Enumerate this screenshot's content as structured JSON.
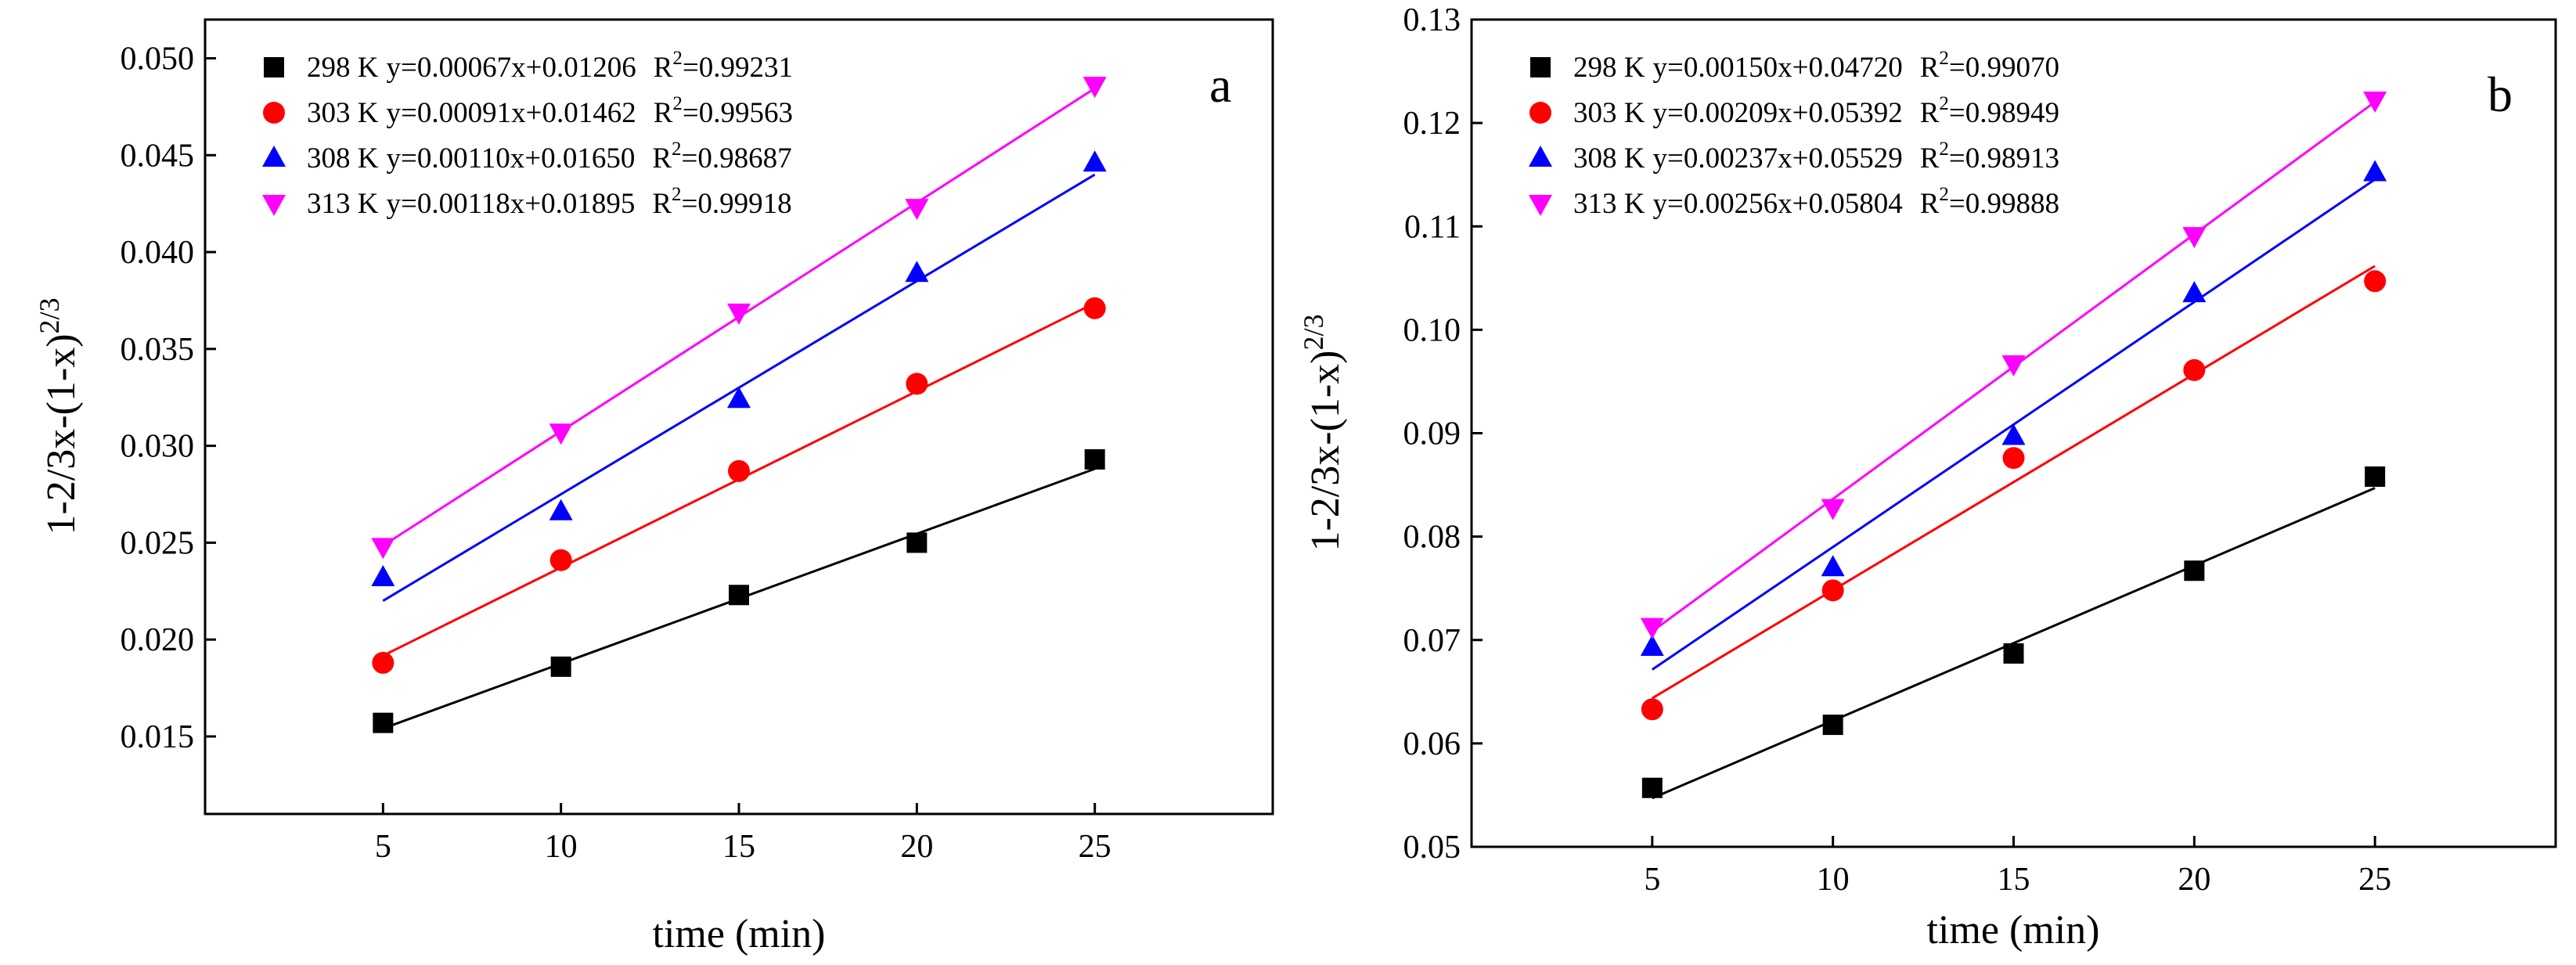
{
  "chart_data": [
    {
      "type": "scatter",
      "panel_label": "a",
      "xlabel": "time (min)",
      "ylabel_base": "1-2/3x-(1-x)",
      "ylabel_exp": "2/3",
      "x": [
        5,
        10,
        15,
        20,
        25
      ],
      "xticks": [
        5,
        10,
        15,
        20,
        25
      ],
      "xtick_labels": [
        "5",
        "10",
        "15",
        "20",
        "25"
      ],
      "xlim": [
        0,
        30
      ],
      "ylim": [
        0.011,
        0.052
      ],
      "yticks": [
        0.015,
        0.02,
        0.025,
        0.03,
        0.035,
        0.04,
        0.045,
        0.05
      ],
      "ytick_labels": [
        "0.015",
        "0.020",
        "0.025",
        "0.030",
        "0.035",
        "0.040",
        "0.045",
        "0.050"
      ],
      "legend_position": "top-left",
      "series": [
        {
          "name": "298 K",
          "equation": "y=0.00067x+0.01206",
          "r2_prefix": "R",
          "r2_exp": "2",
          "r2_value": "=0.99231",
          "slope": 0.00067,
          "intercept": 0.01206,
          "marker": "square",
          "color": "#000000",
          "values": [
            0.0157,
            0.0186,
            0.0223,
            0.025,
            0.0293
          ]
        },
        {
          "name": "303 K",
          "equation": "y=0.00091x+0.01462",
          "r2_prefix": "R",
          "r2_exp": "2",
          "r2_value": "=0.99563",
          "slope": 0.00091,
          "intercept": 0.01462,
          "marker": "circle",
          "color": "#ff0000",
          "values": [
            0.0188,
            0.0241,
            0.0287,
            0.0332,
            0.0371
          ]
        },
        {
          "name": "308 K",
          "equation": "y=0.00110x+0.01650",
          "r2_prefix": "R",
          "r2_exp": "2",
          "r2_value": "=0.98687",
          "slope": 0.0011,
          "intercept": 0.0165,
          "marker": "triangle-up",
          "color": "#0000ff",
          "values": [
            0.0232,
            0.0266,
            0.0324,
            0.0389,
            0.0446
          ]
        },
        {
          "name": "313 K",
          "equation": "y=0.00118x+0.01895",
          "r2_prefix": "R",
          "r2_exp": "2",
          "r2_value": "=0.99918",
          "slope": 0.00118,
          "intercept": 0.01895,
          "marker": "triangle-down",
          "color": "#ff00ff",
          "values": [
            0.0248,
            0.0307,
            0.0369,
            0.0423,
            0.0486
          ]
        }
      ]
    },
    {
      "type": "scatter",
      "panel_label": "b",
      "xlabel": "time (min)",
      "ylabel_base": "1-2/3x-(1-x)",
      "ylabel_exp": "2/3",
      "x": [
        5,
        10,
        15,
        20,
        25
      ],
      "xticks": [
        5,
        10,
        15,
        20,
        25
      ],
      "xtick_labels": [
        "5",
        "10",
        "15",
        "20",
        "25"
      ],
      "xlim": [
        0,
        30
      ],
      "ylim": [
        0.05,
        0.13
      ],
      "yticks": [
        0.05,
        0.06,
        0.07,
        0.08,
        0.09,
        0.1,
        0.11,
        0.12,
        0.13
      ],
      "ytick_labels": [
        "0.05",
        "0.06",
        "0.07",
        "0.08",
        "0.09",
        "0.10",
        "0.11",
        "0.12",
        "0.13"
      ],
      "legend_position": "top-left",
      "series": [
        {
          "name": "298 K",
          "equation": "y=0.00150x+0.04720",
          "r2_prefix": "R",
          "r2_exp": "2",
          "r2_value": "=0.99070",
          "slope": 0.0015,
          "intercept": 0.0472,
          "marker": "square",
          "color": "#000000",
          "values": [
            0.0557,
            0.0618,
            0.0687,
            0.0767,
            0.0858
          ]
        },
        {
          "name": "303 K",
          "equation": "y=0.00209x+0.05392",
          "r2_prefix": "R",
          "r2_exp": "2",
          "r2_value": "=0.98949",
          "slope": 0.00209,
          "intercept": 0.05392,
          "marker": "circle",
          "color": "#ff0000",
          "values": [
            0.0633,
            0.0748,
            0.0876,
            0.0961,
            0.1047
          ]
        },
        {
          "name": "308 K",
          "equation": "y=0.00237x+0.05529",
          "r2_prefix": "R",
          "r2_exp": "2",
          "r2_value": "=0.98913",
          "slope": 0.00237,
          "intercept": 0.05529,
          "marker": "triangle-up",
          "color": "#0000ff",
          "values": [
            0.0693,
            0.077,
            0.0897,
            0.1035,
            0.1152
          ]
        },
        {
          "name": "313 K",
          "equation": "y=0.00256x+0.05804",
          "r2_prefix": "R",
          "r2_exp": "2",
          "r2_value": "=0.99888",
          "slope": 0.00256,
          "intercept": 0.05804,
          "marker": "triangle-down",
          "color": "#ff00ff",
          "values": [
            0.0713,
            0.0828,
            0.0967,
            0.1091,
            0.1222
          ]
        }
      ]
    }
  ]
}
